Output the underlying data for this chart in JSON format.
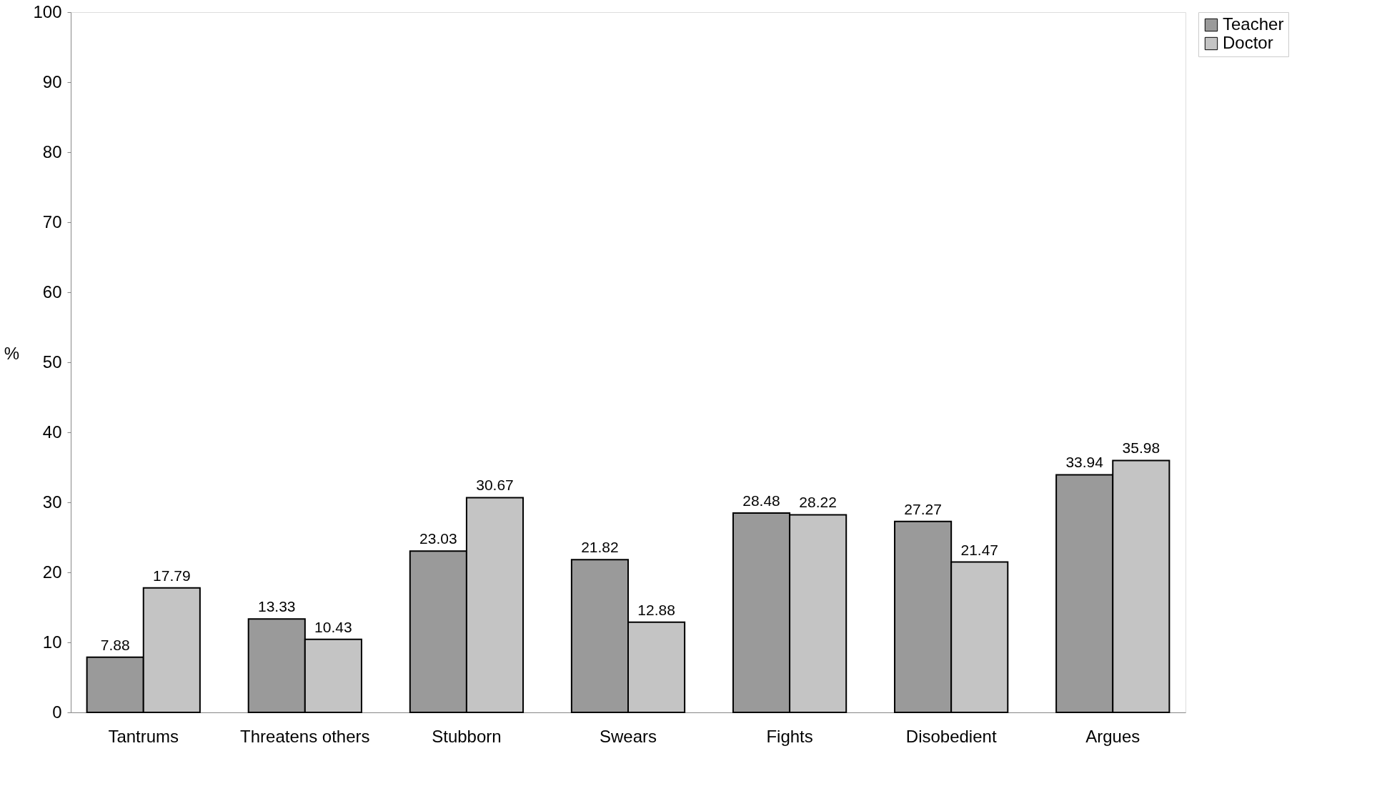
{
  "chart_data": {
    "type": "bar",
    "ylabel": "%",
    "categories": [
      "Tantrums",
      "Threatens others",
      "Stubborn",
      "Swears",
      "Fights",
      "Disobedient",
      "Argues"
    ],
    "series": [
      {
        "name": "Teacher",
        "color": "#9a9a9a",
        "values": [
          7.88,
          13.33,
          23.03,
          21.82,
          28.48,
          27.27,
          33.94
        ]
      },
      {
        "name": "Doctor",
        "color": "#c4c4c4",
        "values": [
          17.79,
          10.43,
          30.67,
          12.88,
          28.22,
          21.47,
          35.98
        ]
      }
    ],
    "ylim": [
      0,
      100
    ],
    "yticks": [
      0,
      10,
      20,
      30,
      40,
      50,
      60,
      70,
      80,
      90,
      100
    ],
    "data_labels": true,
    "legend": "right",
    "grid": false
  }
}
